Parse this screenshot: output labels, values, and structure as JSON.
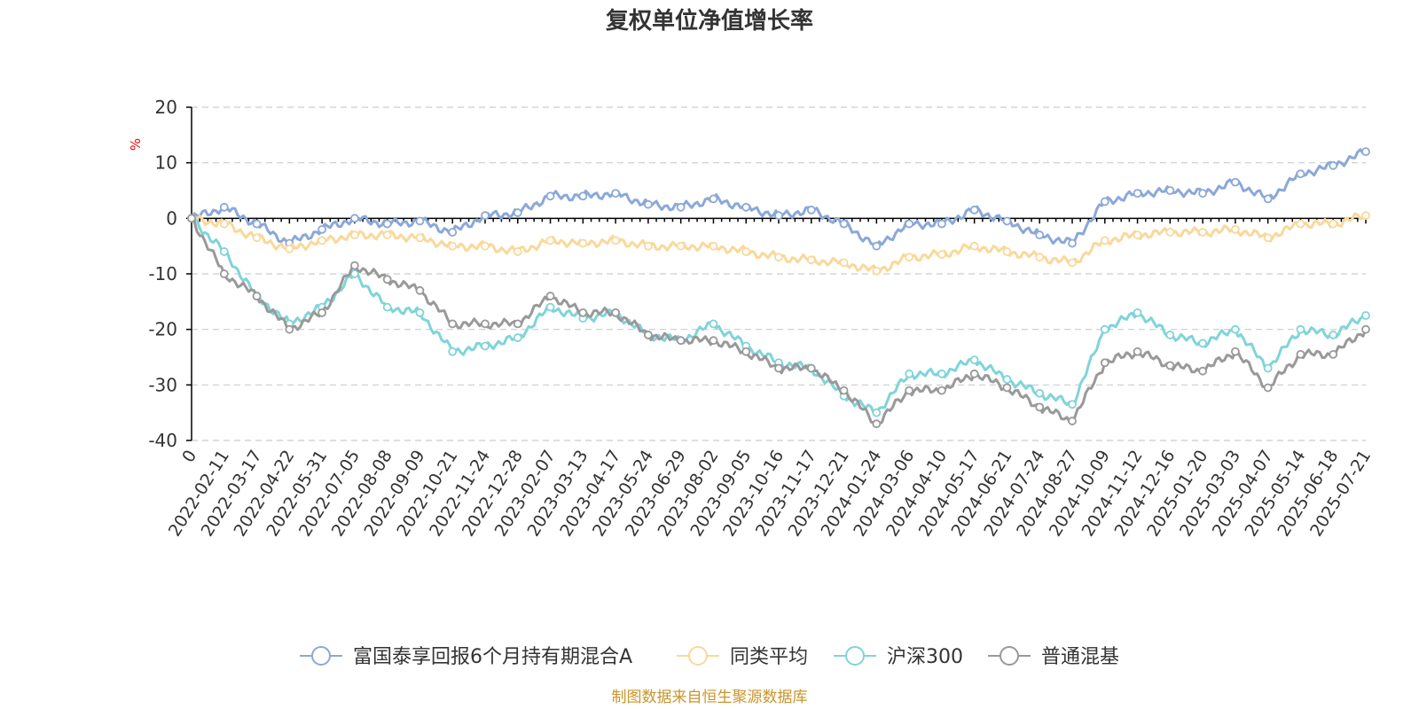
{
  "chart_data": {
    "type": "line",
    "title": "复权单位净值增长率",
    "ylabel": "%",
    "ylim": [
      -40,
      20
    ],
    "yticks": [
      20,
      10,
      0,
      -10,
      -20,
      -30,
      -40
    ],
    "grid": true,
    "legend_position": "bottom",
    "x": [
      "0",
      "2022-02-11",
      "2022-03-17",
      "2022-04-22",
      "2022-05-31",
      "2022-07-05",
      "2022-08-08",
      "2022-09-09",
      "2022-10-21",
      "2022-11-24",
      "2022-12-28",
      "2023-02-07",
      "2023-03-13",
      "2023-04-17",
      "2023-05-24",
      "2023-06-29",
      "2023-08-02",
      "2023-09-05",
      "2023-10-16",
      "2023-11-17",
      "2023-12-21",
      "2024-01-24",
      "2024-03-06",
      "2024-04-10",
      "2024-05-17",
      "2024-06-21",
      "2024-07-24",
      "2024-08-27",
      "2024-10-09",
      "2024-11-12",
      "2024-12-16",
      "2025-01-20",
      "2025-03-03",
      "2025-04-07",
      "2025-05-14",
      "2025-06-18",
      "2025-07-21"
    ],
    "series": [
      {
        "name": "富国泰享回报6个月持有期混合A",
        "color": "#8ba8d8",
        "values": [
          0,
          2,
          -1,
          -4.5,
          -2,
          0,
          -1,
          -0.5,
          -2.5,
          0.5,
          1,
          4,
          4,
          4.5,
          2.5,
          2,
          3.5,
          2,
          0.5,
          1.5,
          -1,
          -5,
          -1,
          -1,
          1.5,
          -0.5,
          -3,
          -4.5,
          3,
          4.5,
          5,
          4.5,
          6.5,
          3.5,
          8,
          9.5,
          12
        ]
      },
      {
        "name": "同类平均",
        "color": "#f9d89a",
        "values": [
          0,
          -1,
          -3.5,
          -5.5,
          -4,
          -3,
          -3,
          -3.5,
          -5,
          -5,
          -6,
          -4,
          -4.5,
          -4,
          -5,
          -5,
          -5,
          -6,
          -7,
          -7.5,
          -8,
          -9.5,
          -7,
          -6.5,
          -5,
          -6,
          -7,
          -8,
          -4,
          -3,
          -2.5,
          -2.5,
          -2,
          -3.5,
          -1,
          -1,
          0.5
        ]
      },
      {
        "name": "沪深300",
        "color": "#7fd4d9",
        "values": [
          0,
          -6,
          -14,
          -19,
          -16,
          -10,
          -16,
          -17,
          -24,
          -23,
          -21.5,
          -16,
          -18,
          -17,
          -21,
          -22,
          -19,
          -23,
          -26,
          -27,
          -32,
          -35,
          -28,
          -28,
          -25.5,
          -29,
          -31.5,
          -33.5,
          -20,
          -17,
          -21,
          -22.5,
          -20,
          -27,
          -20,
          -21,
          -17.5
        ]
      },
      {
        "name": "普通混基",
        "color": "#999999",
        "values": [
          0,
          -10,
          -14,
          -20,
          -17,
          -8.5,
          -11,
          -13,
          -19,
          -19,
          -19,
          -14,
          -17,
          -17,
          -21,
          -22,
          -22,
          -24,
          -27,
          -27,
          -31,
          -37,
          -31,
          -31,
          -28,
          -30.5,
          -34,
          -36.5,
          -26,
          -24,
          -26.5,
          -27.5,
          -24,
          -30.5,
          -24.5,
          -24.5,
          -20
        ]
      }
    ]
  },
  "source_note": "制图数据来自恒生聚源数据库",
  "source_color": "#c8952c",
  "unit_color": "#ff0000"
}
